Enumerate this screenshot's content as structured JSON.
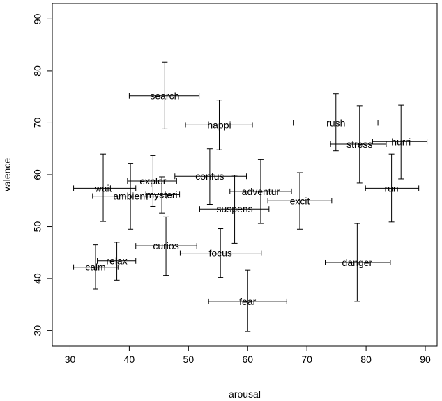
{
  "chart_data": {
    "type": "scatter",
    "title": "",
    "xlabel": "arousal",
    "ylabel": "valence",
    "xlim": [
      27,
      92
    ],
    "ylim": [
      27,
      93
    ],
    "xticks": [
      30,
      40,
      50,
      60,
      70,
      80,
      90
    ],
    "yticks": [
      30,
      40,
      50,
      60,
      70,
      80,
      90
    ],
    "grid": false,
    "legend": "none",
    "points": [
      {
        "label": "search",
        "x": 46.0,
        "y": 75.2,
        "x_err": [
          40.0,
          51.8
        ],
        "y_err": [
          68.8,
          81.7
        ]
      },
      {
        "label": "happi",
        "x": 55.2,
        "y": 69.6,
        "x_err": [
          49.5,
          60.8
        ],
        "y_err": [
          64.8,
          74.4
        ]
      },
      {
        "label": "rush",
        "x": 74.9,
        "y": 70.0,
        "x_err": [
          67.7,
          82.0
        ],
        "y_err": [
          64.6,
          75.6
        ]
      },
      {
        "label": "stress",
        "x": 78.9,
        "y": 65.9,
        "x_err": [
          74.0,
          83.4
        ],
        "y_err": [
          58.4,
          73.3
        ]
      },
      {
        "label": "hurri",
        "x": 85.9,
        "y": 66.4,
        "x_err": [
          81.1,
          90.3
        ],
        "y_err": [
          59.2,
          73.4
        ]
      },
      {
        "label": "confus",
        "x": 53.6,
        "y": 59.7,
        "x_err": [
          47.7,
          59.8
        ],
        "y_err": [
          54.3,
          65.0
        ]
      },
      {
        "label": "explor",
        "x": 44.0,
        "y": 58.8,
        "x_err": [
          39.7,
          48.0
        ],
        "y_err": [
          53.9,
          63.7
        ]
      },
      {
        "label": "wait",
        "x": 35.6,
        "y": 57.4,
        "x_err": [
          30.6,
          41.1
        ],
        "y_err": [
          51.0,
          64.0
        ]
      },
      {
        "label": "ambient",
        "x": 40.2,
        "y": 55.9,
        "x_err": [
          33.8,
          46.3
        ],
        "y_err": [
          49.5,
          62.2
        ]
      },
      {
        "label": "mysteri",
        "x": 45.5,
        "y": 56.2,
        "x_err": [
          42.8,
          48.5
        ],
        "y_err": [
          52.6,
          59.6
        ]
      },
      {
        "label": "adventur",
        "x": 62.2,
        "y": 56.8,
        "x_err": [
          57.0,
          67.4
        ],
        "y_err": [
          50.6,
          62.9
        ]
      },
      {
        "label": "excit",
        "x": 68.8,
        "y": 55.0,
        "x_err": [
          63.4,
          74.2
        ],
        "y_err": [
          49.5,
          60.4
        ]
      },
      {
        "label": "run",
        "x": 84.3,
        "y": 57.4,
        "x_err": [
          79.9,
          88.9
        ],
        "y_err": [
          50.9,
          64.0
        ]
      },
      {
        "label": "suspens",
        "x": 57.8,
        "y": 53.4,
        "x_err": [
          51.9,
          63.6
        ],
        "y_err": [
          46.8,
          59.9
        ]
      },
      {
        "label": "curios",
        "x": 46.2,
        "y": 46.3,
        "x_err": [
          41.1,
          51.4
        ],
        "y_err": [
          40.6,
          51.9
        ]
      },
      {
        "label": "focus",
        "x": 55.4,
        "y": 44.9,
        "x_err": [
          48.6,
          62.3
        ],
        "y_err": [
          40.2,
          49.6
        ]
      },
      {
        "label": "relax",
        "x": 37.9,
        "y": 43.4,
        "x_err": [
          34.6,
          41.1
        ],
        "y_err": [
          39.7,
          47.0
        ]
      },
      {
        "label": "calm",
        "x": 34.3,
        "y": 42.2,
        "x_err": [
          30.6,
          38.1
        ],
        "y_err": [
          38.0,
          46.5
        ]
      },
      {
        "label": "danger",
        "x": 78.5,
        "y": 43.1,
        "x_err": [
          73.1,
          84.1
        ],
        "y_err": [
          35.6,
          50.6
        ]
      },
      {
        "label": "fear",
        "x": 60.0,
        "y": 35.6,
        "x_err": [
          53.4,
          66.6
        ],
        "y_err": [
          29.8,
          41.6
        ]
      }
    ]
  }
}
